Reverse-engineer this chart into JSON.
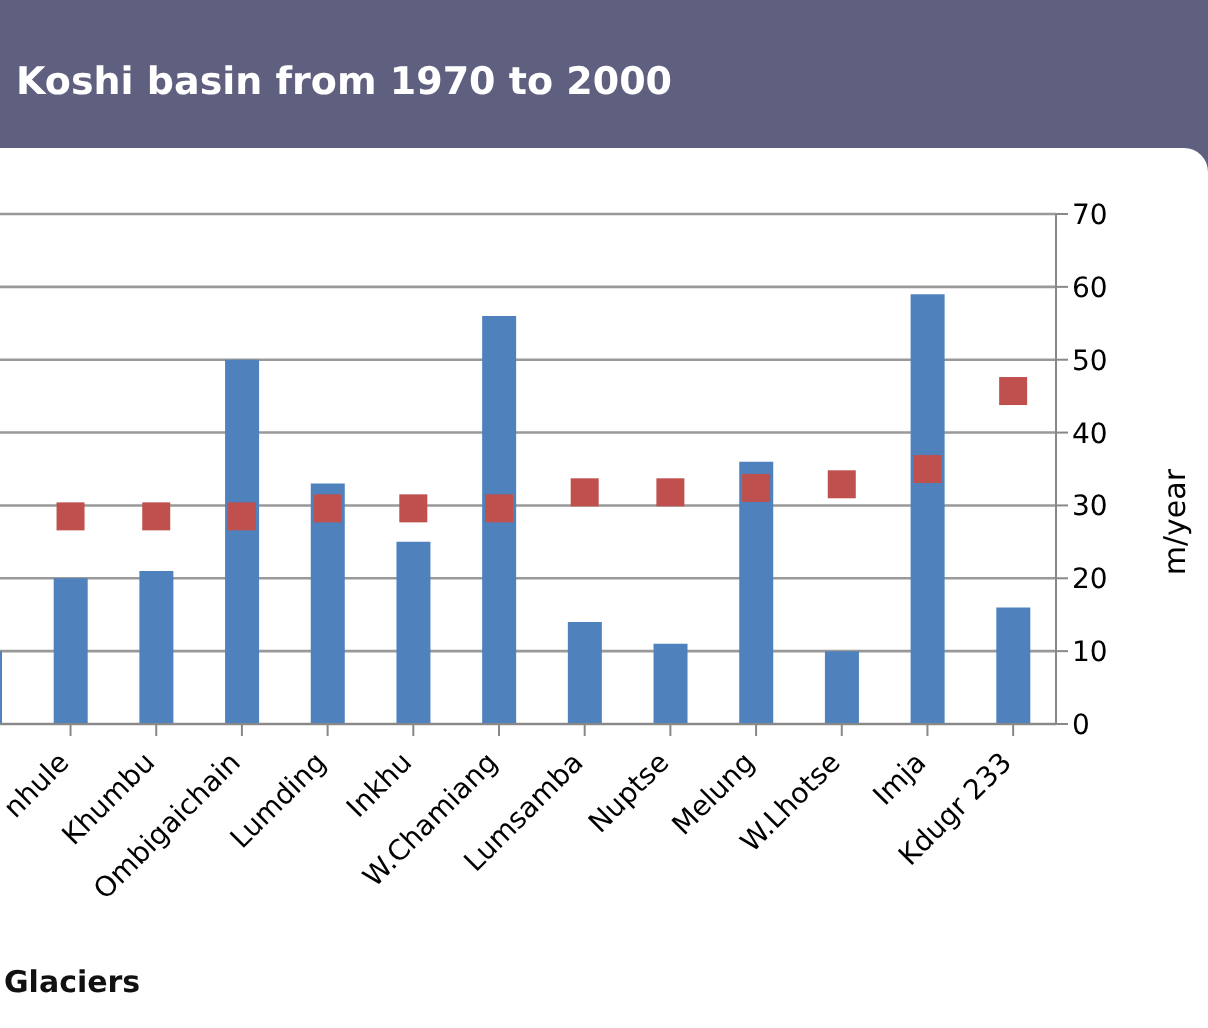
{
  "chart_data": {
    "type": "bar",
    "title": "Koshi basin from 1970 to 2000",
    "xlabel": "Glaciers",
    "ylabel": "m/year",
    "categories": [
      null,
      "nhule",
      "Khumbu",
      "Ombigaichain",
      "Lumding",
      "Inkhu",
      "W.Chamiang",
      "Lumsamba",
      "Nuptse",
      "Melung",
      "W.Lhotse",
      "Imja",
      "Kdugr 233"
    ],
    "series": [
      {
        "color": "#4f81bd",
        "values": [
          10,
          20,
          21,
          50,
          33,
          25,
          56,
          14,
          11,
          36,
          10,
          59,
          16
        ]
      },
      {
        "type": "scatter",
        "color": "#c0504d",
        "marker": "square",
        "values": [
          null,
          28.5,
          28.5,
          28.5,
          29.6,
          29.6,
          29.6,
          31.8,
          31.8,
          32.4,
          32.9,
          35,
          45.7
        ]
      }
    ],
    "ylim": [
      0,
      70
    ],
    "yticks": [
      0,
      10,
      20,
      30,
      40,
      50,
      60,
      70
    ],
    "grid": "y"
  }
}
